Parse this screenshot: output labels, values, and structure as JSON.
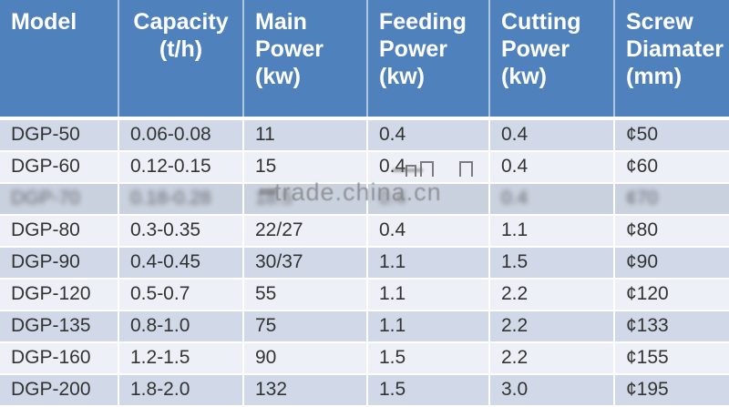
{
  "chart_data": {
    "type": "table",
    "columns": [
      {
        "id": "model",
        "label": "Model"
      },
      {
        "id": "capacity",
        "label": "Capacity\n(t/h)"
      },
      {
        "id": "main_power",
        "label": "Main\nPower\n(kw)"
      },
      {
        "id": "feeding_power",
        "label": "Feeding\nPower\n(kw)"
      },
      {
        "id": "cutting_power",
        "label": "Cutting\nPower\n(kw)"
      },
      {
        "id": "screw_diameter",
        "label": "Screw\nDiamater\n(mm)"
      }
    ],
    "rows": [
      {
        "model": "DGP-50",
        "capacity": "0.06-0.08",
        "main_power": "11",
        "feeding_power": "0.4",
        "cutting_power": "0.4",
        "screw_diameter": "¢50"
      },
      {
        "model": "DGP-60",
        "capacity": "0.12-0.15",
        "main_power": "15",
        "feeding_power": "0.4",
        "cutting_power": "0.4",
        "screw_diameter": "¢60"
      },
      {
        "model": "DGP-70",
        "capacity": "0.18-0.28",
        "main_power": "18.5",
        "feeding_power": "0.4",
        "cutting_power": "0.4",
        "screw_diameter": "¢70"
      },
      {
        "model": "DGP-80",
        "capacity": "0.3-0.35",
        "main_power": "22/27",
        "feeding_power": "0.4",
        "cutting_power": "1.1",
        "screw_diameter": "¢80"
      },
      {
        "model": "DGP-90",
        "capacity": "0.4-0.45",
        "main_power": "30/37",
        "feeding_power": "1.1",
        "cutting_power": "1.5",
        "screw_diameter": "¢90"
      },
      {
        "model": "DGP-120",
        "capacity": "0.5-0.7",
        "main_power": "55",
        "feeding_power": "1.1",
        "cutting_power": "2.2",
        "screw_diameter": "¢120"
      },
      {
        "model": "DGP-135",
        "capacity": "0.8-1.0",
        "main_power": "75",
        "feeding_power": "1.1",
        "cutting_power": "2.2",
        "screw_diameter": "¢133"
      },
      {
        "model": "DGP-160",
        "capacity": "1.2-1.5",
        "main_power": "90",
        "feeding_power": "1.5",
        "cutting_power": "2.2",
        "screw_diameter": "¢155"
      },
      {
        "model": "DGP-200",
        "capacity": "1.8-2.0",
        "main_power": "132",
        "feeding_power": "1.5",
        "cutting_power": "3.0",
        "screw_diameter": "¢195"
      }
    ]
  },
  "watermark": {
    "text": "trade.china.cn",
    "obscured_row": "DGP-70"
  },
  "colors": {
    "header_bg": "#4f81bd",
    "header_text": "#ffffff",
    "row_dark": "#d1d9e8",
    "row_light": "#edf0f7",
    "cell_text": "#333333",
    "watermark_text": "#8a8a8a"
  }
}
